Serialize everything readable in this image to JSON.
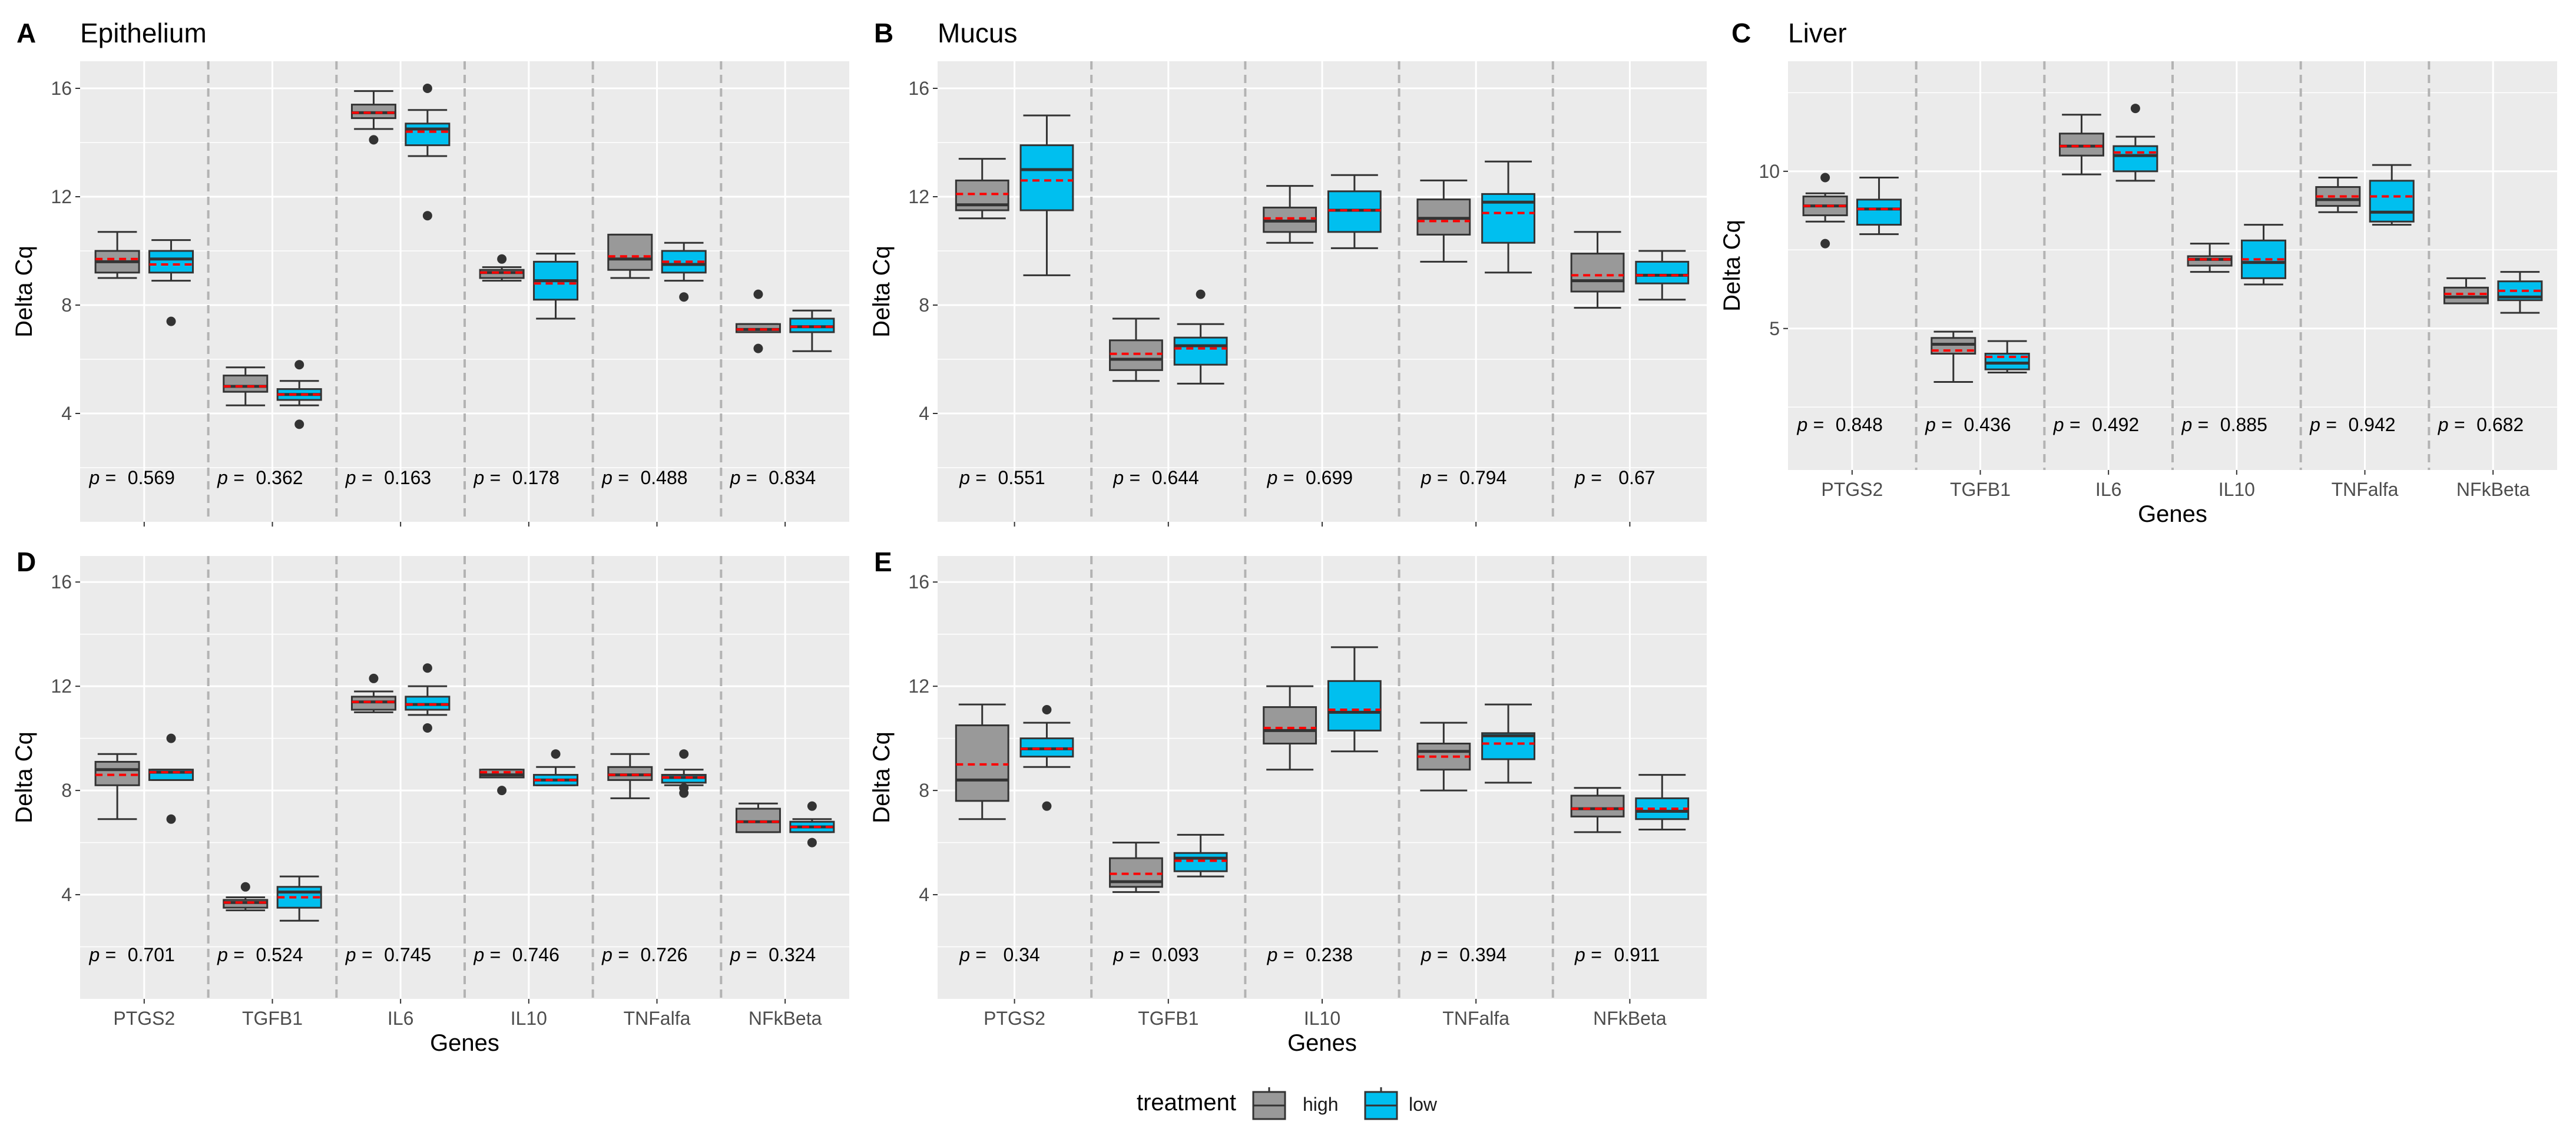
{
  "colors": {
    "panel_bg": "#ebebeb",
    "grid": "#ffffff",
    "high": "#999999",
    "low": "#00bfef",
    "mean_line": "#ff0000",
    "separator": "#b3b3b3",
    "outline": "#333333"
  },
  "legend": {
    "title": "treatment",
    "items": [
      {
        "label": "high",
        "color": "#999999"
      },
      {
        "label": "low",
        "color": "#00bfef"
      }
    ]
  },
  "chart_data": [
    {
      "type": "boxplot",
      "tag": "A",
      "title": "Epithelium",
      "xlabel": "",
      "ylabel": "Delta Cq",
      "ylim": [
        0,
        17
      ],
      "yticks": [
        4,
        8,
        12,
        16
      ],
      "categories": [
        "PTGS2",
        "TGFB1",
        "IL6",
        "IL10",
        "TNFalfa",
        "NFkBeta"
      ],
      "pvalues": [
        "0.569",
        "0.362",
        "0.163",
        "0.178",
        "0.488",
        "0.834"
      ],
      "series": [
        {
          "name": "high",
          "boxes": [
            {
              "q1": 9.2,
              "median": 9.6,
              "q3": 10.0,
              "lo": 9.0,
              "hi": 10.7,
              "mean": 9.7,
              "outliers": []
            },
            {
              "q1": 4.8,
              "median": 5.0,
              "q3": 5.4,
              "lo": 4.3,
              "hi": 5.7,
              "mean": 5.0,
              "outliers": []
            },
            {
              "q1": 14.9,
              "median": 15.1,
              "q3": 15.4,
              "lo": 14.5,
              "hi": 15.9,
              "mean": 15.1,
              "outliers": [
                14.1
              ]
            },
            {
              "q1": 9.0,
              "median": 9.2,
              "q3": 9.3,
              "lo": 8.9,
              "hi": 9.4,
              "mean": 9.2,
              "outliers": [
                9.7
              ]
            },
            {
              "q1": 9.3,
              "median": 9.7,
              "q3": 10.6,
              "lo": 9.0,
              "hi": 10.6,
              "mean": 9.8,
              "outliers": []
            },
            {
              "q1": 7.0,
              "median": 7.1,
              "q3": 7.3,
              "lo": 7.0,
              "hi": 7.3,
              "mean": 7.1,
              "outliers": [
                6.4,
                8.4
              ]
            }
          ]
        },
        {
          "name": "low",
          "boxes": [
            {
              "q1": 9.2,
              "median": 9.7,
              "q3": 10.0,
              "lo": 8.9,
              "hi": 10.4,
              "mean": 9.5,
              "outliers": [
                7.4
              ]
            },
            {
              "q1": 4.5,
              "median": 4.7,
              "q3": 4.9,
              "lo": 4.3,
              "hi": 5.2,
              "mean": 4.7,
              "outliers": [
                3.6,
                5.8
              ]
            },
            {
              "q1": 13.9,
              "median": 14.5,
              "q3": 14.7,
              "lo": 13.5,
              "hi": 15.2,
              "mean": 14.4,
              "outliers": [
                11.3,
                16.0
              ]
            },
            {
              "q1": 8.2,
              "median": 8.9,
              "q3": 9.6,
              "lo": 7.5,
              "hi": 9.9,
              "mean": 8.8,
              "outliers": []
            },
            {
              "q1": 9.2,
              "median": 9.5,
              "q3": 10.0,
              "lo": 8.9,
              "hi": 10.3,
              "mean": 9.6,
              "outliers": [
                8.3
              ]
            },
            {
              "q1": 7.0,
              "median": 7.2,
              "q3": 7.5,
              "lo": 6.3,
              "hi": 7.8,
              "mean": 7.2,
              "outliers": []
            }
          ]
        }
      ]
    },
    {
      "type": "boxplot",
      "tag": "B",
      "title": "Mucus",
      "xlabel": "",
      "ylabel": "Delta Cq",
      "ylim": [
        0,
        17
      ],
      "yticks": [
        4,
        8,
        12,
        16
      ],
      "categories": [
        "PTGS2",
        "TGFB1",
        "IL10",
        "TNFalfa",
        "NFkBeta"
      ],
      "pvalues": [
        "0.551",
        "0.644",
        "0.699",
        "0.794",
        "0.67"
      ],
      "series": [
        {
          "name": "high",
          "boxes": [
            {
              "q1": 11.5,
              "median": 11.7,
              "q3": 12.6,
              "lo": 11.2,
              "hi": 13.4,
              "mean": 12.1,
              "outliers": []
            },
            {
              "q1": 5.6,
              "median": 6.0,
              "q3": 6.7,
              "lo": 5.2,
              "hi": 7.5,
              "mean": 6.2,
              "outliers": []
            },
            {
              "q1": 10.7,
              "median": 11.1,
              "q3": 11.6,
              "lo": 10.3,
              "hi": 12.4,
              "mean": 11.2,
              "outliers": []
            },
            {
              "q1": 10.6,
              "median": 11.2,
              "q3": 11.9,
              "lo": 9.6,
              "hi": 12.6,
              "mean": 11.1,
              "outliers": []
            },
            {
              "q1": 8.5,
              "median": 8.9,
              "q3": 9.9,
              "lo": 7.9,
              "hi": 10.7,
              "mean": 9.1,
              "outliers": []
            }
          ]
        },
        {
          "name": "low",
          "boxes": [
            {
              "q1": 11.5,
              "median": 13.0,
              "q3": 13.9,
              "lo": 9.1,
              "hi": 15.0,
              "mean": 12.6,
              "outliers": []
            },
            {
              "q1": 5.8,
              "median": 6.5,
              "q3": 6.8,
              "lo": 5.1,
              "hi": 7.3,
              "mean": 6.4,
              "outliers": [
                8.4
              ]
            },
            {
              "q1": 10.7,
              "median": 11.5,
              "q3": 12.2,
              "lo": 10.1,
              "hi": 12.8,
              "mean": 11.5,
              "outliers": []
            },
            {
              "q1": 10.3,
              "median": 11.8,
              "q3": 12.1,
              "lo": 9.2,
              "hi": 13.3,
              "mean": 11.4,
              "outliers": []
            },
            {
              "q1": 8.8,
              "median": 9.1,
              "q3": 9.6,
              "lo": 8.2,
              "hi": 10.0,
              "mean": 9.1,
              "outliers": []
            }
          ]
        }
      ]
    },
    {
      "type": "boxplot",
      "tag": "C",
      "title": "Liver",
      "xlabel": "Genes",
      "ylabel": "Delta Cq",
      "ylim": [
        0.5,
        13.5
      ],
      "yticks": [
        5,
        10
      ],
      "categories": [
        "PTGS2",
        "TGFB1",
        "IL6",
        "IL10",
        "TNFalfa",
        "NFkBeta"
      ],
      "pvalues": [
        "0.848",
        "0.436",
        "0.492",
        "0.885",
        "0.942",
        "0.682"
      ],
      "series": [
        {
          "name": "high",
          "boxes": [
            {
              "q1": 8.6,
              "median": 8.9,
              "q3": 9.2,
              "lo": 8.4,
              "hi": 9.3,
              "mean": 8.9,
              "outliers": [
                7.7,
                9.8
              ]
            },
            {
              "q1": 4.2,
              "median": 4.5,
              "q3": 4.7,
              "lo": 3.3,
              "hi": 4.9,
              "mean": 4.3,
              "outliers": []
            },
            {
              "q1": 10.5,
              "median": 10.8,
              "q3": 11.2,
              "lo": 9.9,
              "hi": 11.8,
              "mean": 10.8,
              "outliers": []
            },
            {
              "q1": 7.0,
              "median": 7.2,
              "q3": 7.3,
              "lo": 6.8,
              "hi": 7.7,
              "mean": 7.2,
              "outliers": []
            },
            {
              "q1": 8.9,
              "median": 9.1,
              "q3": 9.5,
              "lo": 8.7,
              "hi": 9.8,
              "mean": 9.2,
              "outliers": []
            },
            {
              "q1": 5.8,
              "median": 6.0,
              "q3": 6.3,
              "lo": 5.8,
              "hi": 6.6,
              "mean": 6.1,
              "outliers": []
            }
          ]
        },
        {
          "name": "low",
          "boxes": [
            {
              "q1": 8.3,
              "median": 8.8,
              "q3": 9.1,
              "lo": 8.0,
              "hi": 9.8,
              "mean": 8.8,
              "outliers": []
            },
            {
              "q1": 3.7,
              "median": 3.9,
              "q3": 4.2,
              "lo": 3.6,
              "hi": 4.6,
              "mean": 4.1,
              "outliers": []
            },
            {
              "q1": 10.0,
              "median": 10.5,
              "q3": 10.8,
              "lo": 9.7,
              "hi": 11.1,
              "mean": 10.6,
              "outliers": [
                12.0
              ]
            },
            {
              "q1": 6.6,
              "median": 7.1,
              "q3": 7.8,
              "lo": 6.4,
              "hi": 8.3,
              "mean": 7.2,
              "outliers": []
            },
            {
              "q1": 8.4,
              "median": 8.7,
              "q3": 9.7,
              "lo": 8.3,
              "hi": 10.2,
              "mean": 9.2,
              "outliers": []
            },
            {
              "q1": 5.9,
              "median": 6.0,
              "q3": 6.5,
              "lo": 5.5,
              "hi": 6.8,
              "mean": 6.2,
              "outliers": []
            }
          ]
        }
      ]
    },
    {
      "type": "boxplot",
      "tag": "D",
      "title": "",
      "xlabel": "Genes",
      "ylabel": "Delta Cq",
      "ylim": [
        0,
        17
      ],
      "yticks": [
        4,
        8,
        12,
        16
      ],
      "categories": [
        "PTGS2",
        "TGFB1",
        "IL6",
        "IL10",
        "TNFalfa",
        "NFkBeta"
      ],
      "pvalues": [
        "0.701",
        "0.524",
        "0.745",
        "0.746",
        "0.726",
        "0.324"
      ],
      "series": [
        {
          "name": "high",
          "boxes": [
            {
              "q1": 8.2,
              "median": 8.8,
              "q3": 9.1,
              "lo": 6.9,
              "hi": 9.4,
              "mean": 8.6,
              "outliers": []
            },
            {
              "q1": 3.5,
              "median": 3.7,
              "q3": 3.8,
              "lo": 3.4,
              "hi": 3.9,
              "mean": 3.7,
              "outliers": [
                4.3
              ]
            },
            {
              "q1": 11.1,
              "median": 11.4,
              "q3": 11.6,
              "lo": 11.0,
              "hi": 11.8,
              "mean": 11.4,
              "outliers": [
                12.3
              ]
            },
            {
              "q1": 8.5,
              "median": 8.6,
              "q3": 8.8,
              "lo": 8.5,
              "hi": 8.8,
              "mean": 8.7,
              "outliers": [
                8.0
              ]
            },
            {
              "q1": 8.4,
              "median": 8.6,
              "q3": 8.9,
              "lo": 7.7,
              "hi": 9.4,
              "mean": 8.6,
              "outliers": []
            },
            {
              "q1": 6.4,
              "median": 6.8,
              "q3": 7.3,
              "lo": 6.4,
              "hi": 7.5,
              "mean": 6.8,
              "outliers": []
            }
          ]
        },
        {
          "name": "low",
          "boxes": [
            {
              "q1": 8.4,
              "median": 8.7,
              "q3": 8.8,
              "lo": 8.4,
              "hi": 8.8,
              "mean": 8.7,
              "outliers": [
                6.9,
                10.0
              ]
            },
            {
              "q1": 3.5,
              "median": 4.1,
              "q3": 4.3,
              "lo": 3.0,
              "hi": 4.7,
              "mean": 3.9,
              "outliers": []
            },
            {
              "q1": 11.1,
              "median": 11.3,
              "q3": 11.6,
              "lo": 10.9,
              "hi": 12.0,
              "mean": 11.3,
              "outliers": [
                10.4,
                12.7
              ]
            },
            {
              "q1": 8.2,
              "median": 8.4,
              "q3": 8.6,
              "lo": 8.2,
              "hi": 8.9,
              "mean": 8.4,
              "outliers": [
                9.4
              ]
            },
            {
              "q1": 8.3,
              "median": 8.5,
              "q3": 8.6,
              "lo": 8.2,
              "hi": 8.8,
              "mean": 8.5,
              "outliers": [
                7.9,
                8.1,
                9.4
              ]
            },
            {
              "q1": 6.4,
              "median": 6.6,
              "q3": 6.8,
              "lo": 6.4,
              "hi": 6.9,
              "mean": 6.6,
              "outliers": [
                6.0,
                7.4
              ]
            }
          ]
        }
      ]
    },
    {
      "type": "boxplot",
      "tag": "E",
      "title": "",
      "xlabel": "Genes",
      "ylabel": "Delta Cq",
      "ylim": [
        0,
        17
      ],
      "yticks": [
        4,
        8,
        12,
        16
      ],
      "categories": [
        "PTGS2",
        "TGFB1",
        "IL10",
        "TNFalfa",
        "NFkBeta"
      ],
      "pvalues": [
        "0.34",
        "0.093",
        "0.238",
        "0.394",
        "0.911"
      ],
      "series": [
        {
          "name": "high",
          "boxes": [
            {
              "q1": 7.6,
              "median": 8.4,
              "q3": 10.5,
              "lo": 6.9,
              "hi": 11.3,
              "mean": 9.0,
              "outliers": []
            },
            {
              "q1": 4.3,
              "median": 4.5,
              "q3": 5.4,
              "lo": 4.1,
              "hi": 6.0,
              "mean": 4.8,
              "outliers": []
            },
            {
              "q1": 9.8,
              "median": 10.3,
              "q3": 11.2,
              "lo": 8.8,
              "hi": 12.0,
              "mean": 10.4,
              "outliers": []
            },
            {
              "q1": 8.8,
              "median": 9.5,
              "q3": 9.8,
              "lo": 8.0,
              "hi": 10.6,
              "mean": 9.3,
              "outliers": []
            },
            {
              "q1": 7.0,
              "median": 7.3,
              "q3": 7.8,
              "lo": 6.4,
              "hi": 8.1,
              "mean": 7.3,
              "outliers": []
            }
          ]
        },
        {
          "name": "low",
          "boxes": [
            {
              "q1": 9.3,
              "median": 9.6,
              "q3": 10.0,
              "lo": 8.9,
              "hi": 10.6,
              "mean": 9.6,
              "outliers": [
                7.4,
                11.1
              ]
            },
            {
              "q1": 4.9,
              "median": 5.4,
              "q3": 5.6,
              "lo": 4.7,
              "hi": 6.3,
              "mean": 5.3,
              "outliers": []
            },
            {
              "q1": 10.3,
              "median": 11.0,
              "q3": 12.2,
              "lo": 9.5,
              "hi": 13.5,
              "mean": 11.1,
              "outliers": []
            },
            {
              "q1": 9.2,
              "median": 10.1,
              "q3": 10.2,
              "lo": 8.3,
              "hi": 11.3,
              "mean": 9.8,
              "outliers": []
            },
            {
              "q1": 6.9,
              "median": 7.2,
              "q3": 7.7,
              "lo": 6.5,
              "hi": 8.6,
              "mean": 7.3,
              "outliers": []
            }
          ]
        }
      ]
    }
  ]
}
